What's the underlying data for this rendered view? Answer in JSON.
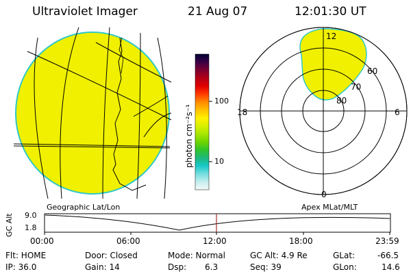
{
  "header": {
    "instrument": "Ultraviolet Imager",
    "date": "21 Aug 07",
    "time": "12:01:30 UT"
  },
  "colorbar": {
    "unit_label": "photon cm⁻²s⁻¹",
    "ticks": [
      "100",
      "10"
    ],
    "colors": [
      "#000033",
      "#3b0046",
      "#7a0030",
      "#b30016",
      "#e00000",
      "#ff3a00",
      "#ff8a00",
      "#ffc000",
      "#fff000",
      "#d8f000",
      "#a8e600",
      "#6fd400",
      "#2fc42a",
      "#1fb87a",
      "#18c8c8",
      "#74dede",
      "#c4eeee",
      "#f4fafa"
    ]
  },
  "polar_plot": {
    "mlt_labels": [
      "12",
      "18",
      "6",
      "0"
    ],
    "lat_labels": [
      "60",
      "70",
      "80"
    ]
  },
  "timeline": {
    "left_label": "Geographic Lat/Lon",
    "right_label": "Apex MLat/MLT",
    "axis_label": "GC Alt",
    "y_max": "9.0",
    "y_min": "1.8",
    "x_ticks": [
      "00:00",
      "06:00",
      "12:00",
      "18:00",
      "23:59"
    ],
    "marker_color": "#a03030"
  },
  "status": {
    "flt": "Flt: HOME",
    "ip": "IP: 36.0",
    "door": "Door: Closed",
    "gain": "Gain: 14",
    "mode": "Mode: Normal",
    "dsp": "Dsp:",
    "dsp_val": "6.3",
    "gcalt": "GC Alt: 4.9 Re",
    "seq": "Seq: 39",
    "glat": "GLat:",
    "glat_val": "-66.5",
    "glon": "GLon:",
    "glon_val": "14.6"
  },
  "colors": {
    "image_fill": "#f0f000",
    "image_edge": "#30c8c8"
  }
}
